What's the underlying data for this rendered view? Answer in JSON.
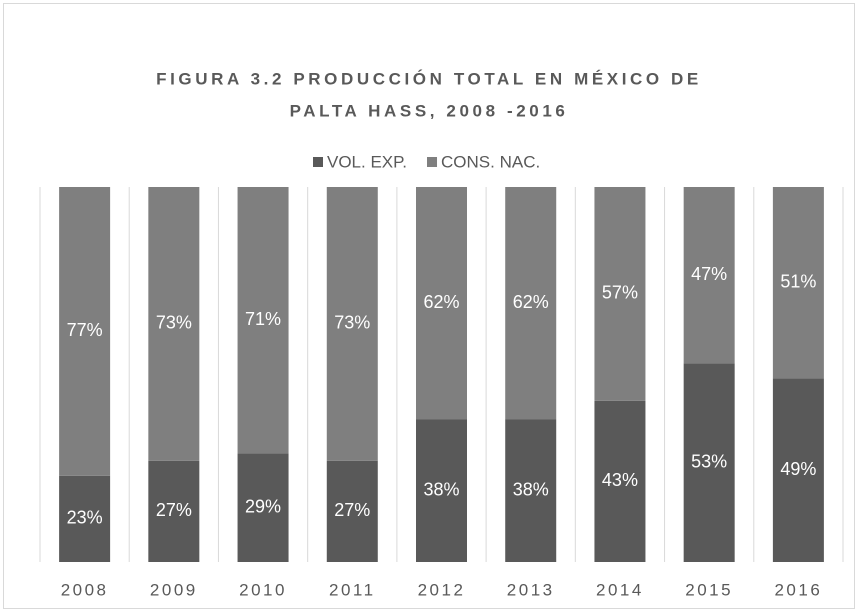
{
  "chart_data": {
    "type": "stacked_bar",
    "title": [
      "FIGURA 3.2 PRODUCCIÓN TOTAL EN MÉXICO DE",
      "PALTA HASS, 2008 -2016"
    ],
    "categories": [
      "2008",
      "2009",
      "2010",
      "2011",
      "2012",
      "2013",
      "2014",
      "2015",
      "2016"
    ],
    "series": [
      {
        "name": "VOL. EXP.",
        "color": "#595959",
        "values": [
          23,
          27,
          29,
          27,
          38,
          38,
          43,
          53,
          49
        ],
        "value_labels": [
          "23%",
          "27%",
          "29%",
          "27%",
          "38%",
          "38%",
          "43%",
          "53%",
          "49%"
        ]
      },
      {
        "name": "CONS. NAC.",
        "color": "#7f7f7f",
        "values": [
          77,
          73,
          71,
          73,
          62,
          62,
          57,
          47,
          51
        ],
        "value_labels": [
          "77%",
          "73%",
          "71%",
          "73%",
          "62%",
          "62%",
          "57%",
          "47%",
          "51%"
        ]
      }
    ],
    "ylim": [
      0,
      100
    ],
    "legend": "top"
  }
}
